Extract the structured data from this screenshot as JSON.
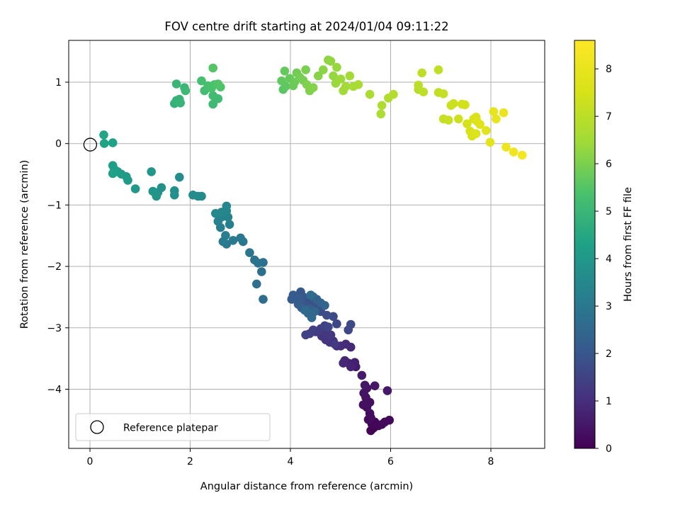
{
  "chart_data": {
    "type": "scatter",
    "title": "FOV centre drift starting at 2024/01/04 09:11:22",
    "xlabel": "Angular distance from reference (arcmin)",
    "ylabel": "Rotation from reference (arcmin)",
    "xlim": [
      -0.43,
      9.07
    ],
    "ylim": [
      -4.95,
      1.7
    ],
    "xticks": [
      0,
      2,
      4,
      6,
      8
    ],
    "yticks": [
      -4,
      -3,
      -2,
      -1,
      0,
      1
    ],
    "grid": true,
    "legend": {
      "placement": "lower-left",
      "entries": [
        "Reference platepar"
      ]
    },
    "colorbar": {
      "label": "Hours from first FF file",
      "range": [
        0,
        8.6
      ],
      "ticks": [
        0,
        1,
        2,
        3,
        4,
        5,
        6,
        7,
        8
      ],
      "colormap": "viridis"
    },
    "reference_point": {
      "x": 0,
      "y": 0
    },
    "series": [
      {
        "type": "scatter",
        "points": [
          [
            5.72,
            -4.58,
            0.02
          ],
          [
            5.65,
            -4.62,
            0.04
          ],
          [
            5.6,
            -4.66,
            0.06
          ],
          [
            5.62,
            -4.55,
            0.08
          ],
          [
            5.68,
            -4.52,
            0.1
          ],
          [
            5.75,
            -4.58,
            0.12
          ],
          [
            5.82,
            -4.56,
            0.14
          ],
          [
            5.88,
            -4.52,
            0.16
          ],
          [
            5.97,
            -4.49,
            0.18
          ],
          [
            5.55,
            -4.48,
            0.2
          ],
          [
            5.6,
            -4.45,
            0.22
          ],
          [
            5.58,
            -4.38,
            0.25
          ],
          [
            5.52,
            -4.28,
            0.28
          ],
          [
            5.58,
            -4.2,
            0.31
          ],
          [
            5.45,
            -4.24,
            0.34
          ],
          [
            5.5,
            -4.12,
            0.37
          ],
          [
            5.46,
            -4.05,
            0.4
          ],
          [
            5.52,
            -3.97,
            0.43
          ],
          [
            5.48,
            -3.92,
            0.46
          ],
          [
            5.68,
            -3.93,
            0.49
          ],
          [
            5.93,
            -4.01,
            0.52
          ],
          [
            5.42,
            -3.76,
            0.56
          ],
          [
            5.3,
            -3.62,
            0.6
          ],
          [
            5.22,
            -3.58,
            0.64
          ],
          [
            5.28,
            -3.55,
            0.68
          ],
          [
            5.15,
            -3.56,
            0.72
          ],
          [
            5.08,
            -3.52,
            0.76
          ],
          [
            5.2,
            -3.62,
            0.8
          ],
          [
            5.05,
            -3.56,
            0.84
          ],
          [
            5.2,
            -3.3,
            0.88
          ],
          [
            5.1,
            -3.25,
            0.92
          ],
          [
            5.0,
            -3.28,
            0.96
          ],
          [
            4.92,
            -3.28,
            1.0
          ],
          [
            4.85,
            -3.2,
            1.04
          ],
          [
            4.78,
            -3.22,
            1.08
          ],
          [
            4.7,
            -3.18,
            1.12
          ],
          [
            4.62,
            -3.12,
            1.16
          ],
          [
            4.7,
            -3.05,
            1.2
          ],
          [
            4.8,
            -3.1,
            1.24
          ],
          [
            4.88,
            -3.25,
            1.28
          ],
          [
            4.6,
            -3.0,
            1.32
          ],
          [
            4.5,
            -3.05,
            1.36
          ],
          [
            4.45,
            -3.02,
            1.4
          ],
          [
            4.38,
            -3.08,
            1.44
          ],
          [
            4.3,
            -3.1,
            1.48
          ],
          [
            4.68,
            -2.95,
            1.52
          ],
          [
            4.75,
            -2.97,
            1.56
          ],
          [
            4.92,
            -2.92,
            1.6
          ],
          [
            5.15,
            -3.02,
            1.64
          ],
          [
            5.2,
            -2.93,
            1.68
          ],
          [
            4.85,
            -2.8,
            1.72
          ],
          [
            4.72,
            -2.78,
            1.76
          ],
          [
            4.6,
            -2.72,
            1.8
          ],
          [
            4.55,
            -2.66,
            1.84
          ],
          [
            4.45,
            -2.62,
            1.88
          ],
          [
            4.35,
            -2.55,
            1.92
          ],
          [
            4.3,
            -2.62,
            1.96
          ],
          [
            4.25,
            -2.48,
            2.0
          ],
          [
            4.2,
            -2.4,
            2.04
          ],
          [
            4.18,
            -2.52,
            2.08
          ],
          [
            4.05,
            -2.45,
            2.12
          ],
          [
            4.02,
            -2.52,
            2.16
          ],
          [
            4.15,
            -2.6,
            2.2
          ],
          [
            4.22,
            -2.66,
            2.24
          ],
          [
            4.38,
            -2.68,
            2.28
          ],
          [
            4.45,
            -2.48,
            2.32
          ],
          [
            4.52,
            -2.52,
            2.36
          ],
          [
            4.6,
            -2.58,
            2.4
          ],
          [
            4.68,
            -2.62,
            2.44
          ],
          [
            4.48,
            -2.72,
            2.48
          ],
          [
            4.42,
            -2.82,
            2.52
          ],
          [
            4.35,
            -2.75,
            2.56
          ],
          [
            4.28,
            -2.7,
            2.6
          ],
          [
            4.4,
            -2.45,
            2.64
          ],
          [
            3.45,
            -2.52,
            2.68
          ],
          [
            3.32,
            -2.27,
            2.72
          ],
          [
            3.42,
            -2.07,
            2.76
          ],
          [
            3.35,
            -1.93,
            2.8
          ],
          [
            3.45,
            -1.92,
            2.84
          ],
          [
            3.28,
            -1.88,
            2.88
          ],
          [
            3.18,
            -1.76,
            2.92
          ],
          [
            3.05,
            -1.58,
            2.96
          ],
          [
            3.0,
            -1.52,
            3.0
          ],
          [
            2.85,
            -1.56,
            3.04
          ],
          [
            2.72,
            -1.62,
            3.08
          ],
          [
            2.65,
            -1.58,
            3.12
          ],
          [
            2.7,
            -1.48,
            3.16
          ],
          [
            2.78,
            -1.3,
            3.2
          ],
          [
            2.6,
            -1.35,
            3.24
          ],
          [
            2.55,
            -1.25,
            3.28
          ],
          [
            2.62,
            -1.18,
            3.32
          ],
          [
            2.75,
            -1.18,
            3.36
          ],
          [
            2.72,
            -1.08,
            3.4
          ],
          [
            2.72,
            -1.0,
            3.44
          ],
          [
            2.62,
            -1.1,
            3.48
          ],
          [
            2.5,
            -1.12,
            3.52
          ],
          [
            2.22,
            -0.84,
            3.56
          ],
          [
            2.15,
            -0.84,
            3.6
          ],
          [
            2.05,
            -0.82,
            3.64
          ],
          [
            1.78,
            -0.53,
            3.68
          ],
          [
            1.68,
            -0.82,
            3.72
          ],
          [
            1.68,
            -0.75,
            3.76
          ],
          [
            1.42,
            -0.7,
            3.8
          ],
          [
            1.35,
            -0.78,
            3.84
          ],
          [
            1.32,
            -0.84,
            3.88
          ],
          [
            1.25,
            -0.76,
            3.92
          ],
          [
            1.22,
            -0.44,
            3.96
          ],
          [
            0.9,
            -0.72,
            4.0
          ],
          [
            0.75,
            -0.58,
            4.04
          ],
          [
            0.72,
            -0.52,
            4.08
          ],
          [
            0.62,
            -0.48,
            4.12
          ],
          [
            0.55,
            -0.44,
            4.16
          ],
          [
            0.48,
            -0.4,
            4.2
          ],
          [
            0.45,
            -0.34,
            4.24
          ],
          [
            0.45,
            -0.47,
            4.28
          ],
          [
            0.45,
            0.03,
            4.32
          ],
          [
            0.28,
            0.02,
            4.36
          ],
          [
            0.27,
            0.16,
            4.4
          ],
          [
            1.68,
            0.67,
            4.82
          ],
          [
            1.72,
            0.72,
            4.86
          ],
          [
            1.78,
            0.74,
            4.9
          ],
          [
            1.8,
            0.68,
            4.94
          ],
          [
            1.72,
            0.99,
            4.98
          ],
          [
            1.88,
            0.93,
            5.02
          ],
          [
            1.9,
            0.88,
            5.06
          ],
          [
            2.45,
            0.66,
            5.1
          ],
          [
            2.55,
            0.75,
            5.14
          ],
          [
            2.45,
            0.8,
            5.18
          ],
          [
            2.28,
            0.88,
            5.22
          ],
          [
            2.22,
            1.04,
            5.26
          ],
          [
            2.35,
            0.96,
            5.3
          ],
          [
            2.42,
            0.92,
            5.34
          ],
          [
            2.48,
            0.98,
            5.38
          ],
          [
            2.6,
            0.94,
            5.42
          ],
          [
            2.55,
            0.99,
            5.46
          ],
          [
            2.45,
            1.25,
            5.5
          ],
          [
            3.85,
            0.9,
            5.58
          ],
          [
            3.9,
            0.95,
            5.62
          ],
          [
            3.82,
            1.04,
            5.66
          ],
          [
            3.88,
            1.2,
            5.7
          ],
          [
            3.98,
            1.08,
            5.74
          ],
          [
            4.05,
            0.96,
            5.78
          ],
          [
            4.08,
            1.02,
            5.82
          ],
          [
            4.12,
            1.17,
            5.86
          ],
          [
            4.18,
            1.1,
            5.9
          ],
          [
            4.25,
            1.05,
            5.94
          ],
          [
            4.3,
            1.22,
            5.98
          ],
          [
            4.32,
            0.98,
            6.02
          ],
          [
            4.38,
            0.88,
            6.06
          ],
          [
            4.45,
            0.93,
            6.1
          ],
          [
            4.55,
            1.12,
            6.14
          ],
          [
            4.65,
            1.22,
            6.18
          ],
          [
            4.75,
            1.38,
            6.22
          ],
          [
            4.8,
            1.36,
            6.26
          ],
          [
            4.85,
            1.12,
            6.3
          ],
          [
            4.92,
            1.26,
            6.34
          ],
          [
            4.9,
            1.0,
            6.38
          ],
          [
            5.0,
            1.07,
            6.42
          ],
          [
            5.05,
            0.88,
            6.46
          ],
          [
            5.1,
            0.95,
            6.5
          ],
          [
            5.18,
            1.12,
            6.54
          ],
          [
            5.25,
            0.95,
            6.58
          ],
          [
            5.35,
            0.98,
            6.62
          ],
          [
            5.58,
            0.82,
            6.66
          ],
          [
            5.8,
            0.5,
            6.7
          ],
          [
            5.82,
            0.64,
            6.74
          ],
          [
            5.95,
            0.76,
            6.78
          ],
          [
            6.05,
            0.82,
            6.82
          ],
          [
            6.55,
            0.9,
            6.9
          ],
          [
            6.55,
            0.97,
            6.94
          ],
          [
            6.62,
            1.17,
            6.98
          ],
          [
            6.65,
            0.86,
            7.02
          ],
          [
            6.95,
            1.22,
            7.06
          ],
          [
            6.95,
            0.85,
            7.1
          ],
          [
            7.05,
            0.83,
            7.14
          ],
          [
            7.05,
            0.42,
            7.18
          ],
          [
            7.15,
            0.4,
            7.22
          ],
          [
            7.2,
            0.64,
            7.26
          ],
          [
            7.25,
            0.67,
            7.3
          ],
          [
            7.35,
            0.42,
            7.34
          ],
          [
            7.42,
            0.66,
            7.38
          ],
          [
            7.48,
            0.65,
            7.42
          ],
          [
            7.52,
            0.34,
            7.46
          ],
          [
            7.58,
            0.22,
            7.5
          ],
          [
            7.62,
            0.14,
            7.54
          ],
          [
            7.65,
            0.42,
            7.58
          ],
          [
            7.7,
            0.45,
            7.62
          ],
          [
            7.72,
            0.38,
            7.66
          ],
          [
            7.7,
            0.18,
            7.7
          ],
          [
            7.78,
            0.33,
            7.75
          ],
          [
            7.9,
            0.23,
            7.8
          ],
          [
            7.98,
            0.04,
            7.86
          ],
          [
            8.05,
            0.54,
            7.92
          ],
          [
            8.1,
            0.42,
            7.98
          ],
          [
            8.25,
            0.52,
            8.04
          ],
          [
            8.3,
            -0.04,
            8.12
          ],
          [
            8.45,
            -0.12,
            8.22
          ],
          [
            8.62,
            -0.17,
            8.32
          ]
        ]
      }
    ]
  }
}
